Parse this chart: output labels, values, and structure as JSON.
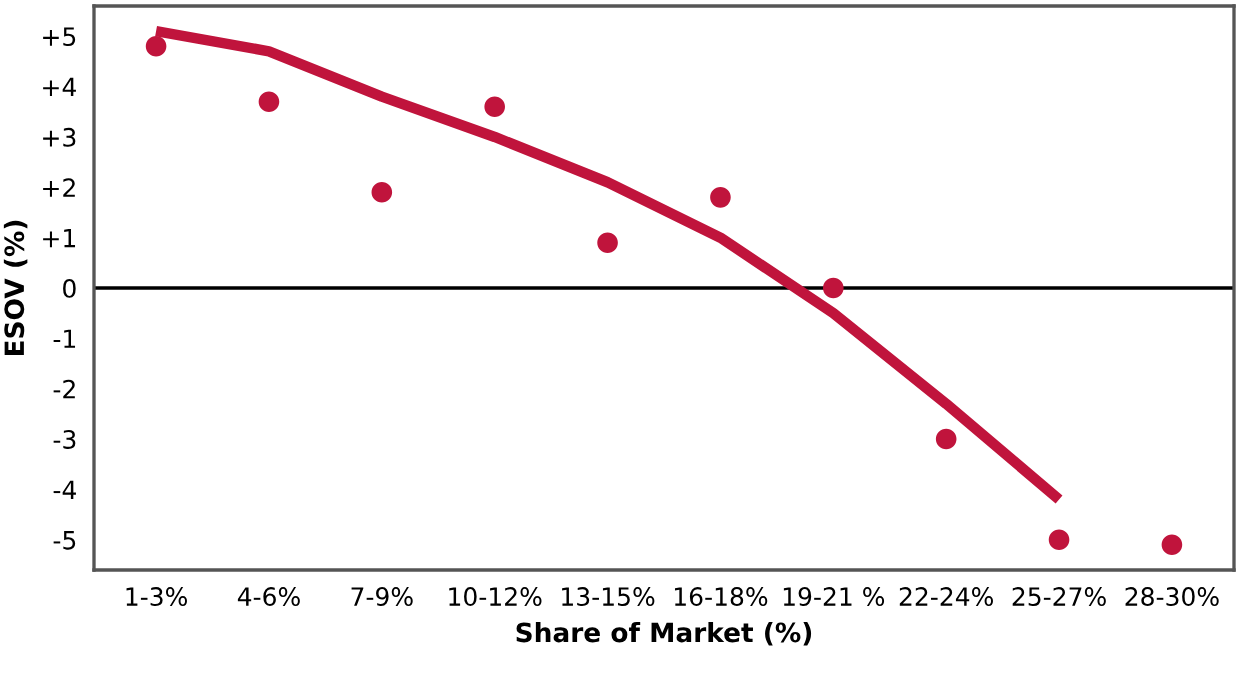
{
  "chart_data": {
    "type": "scatter",
    "xlabel": "Share of Market (%)",
    "ylabel": "ESOV (%)",
    "categories": [
      "1-3%",
      "4-6%",
      "7-9%",
      "10-12%",
      "13-15%",
      "16-18%",
      "19-21 %",
      "22-24%",
      "25-27%",
      "28-30%"
    ],
    "ylim": [
      -5.6,
      5.6
    ],
    "yticks": [
      {
        "value": 5,
        "label": "+5"
      },
      {
        "value": 4,
        "label": "+4"
      },
      {
        "value": 3,
        "label": "+3"
      },
      {
        "value": 2,
        "label": "+2"
      },
      {
        "value": 1,
        "label": "+1"
      },
      0,
      -1,
      -2,
      -3,
      -4,
      -5
    ],
    "series": [
      {
        "color": "#c0143c",
        "marker": "circle",
        "values": [
          4.8,
          3.7,
          1.9,
          3.6,
          0.9,
          1.8,
          0.0,
          -3.0,
          -5.0,
          -5.1
        ]
      },
      {
        "type": "line",
        "color": "#c0143c",
        "line_style": "solid",
        "values": [
          5.1,
          4.7,
          3.8,
          3.0,
          2.1,
          1.0,
          -0.5,
          -2.3,
          -4.2,
          null
        ]
      }
    ],
    "ref_lines": [
      {
        "axis": "y",
        "value": 0,
        "color": "#000000"
      }
    ],
    "grid": false,
    "legend": false
  }
}
